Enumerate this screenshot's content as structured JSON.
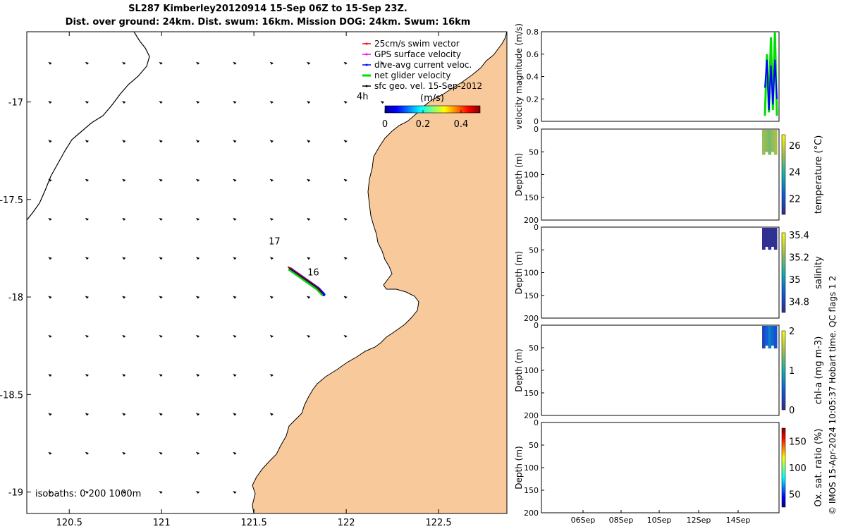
{
  "header": {
    "title_line1": "SL287 Kimberley20120914 15-Sep 06Z to 15-Sep 23Z.",
    "title_line2": "Dist. over ground: 24km. Dist. swum: 16km. Mission DOG: 24km. Swum: 16km"
  },
  "credit": "© IMOS 15-Apr-2024 10:05:37 Hobart time. QC flags 1  2",
  "chart_data": [
    {
      "type": "map",
      "name": "glider-track-map",
      "x_ticks": [
        "120.5",
        "121",
        "121.5",
        "122",
        "122.5"
      ],
      "x_tick_values": [
        120.5,
        121,
        121.5,
        122,
        122.5
      ],
      "y_ticks": [
        "-17",
        "-17.5",
        "-18",
        "-18.5",
        "-19"
      ],
      "y_tick_values": [
        -17,
        -17.5,
        -18,
        -18.5,
        -19
      ],
      "xlim": [
        120.27,
        122.87
      ],
      "ylim": [
        -19.11,
        -16.64
      ],
      "land_color": "#f8c99a",
      "legend": [
        {
          "label": "25cm/s swim vector",
          "color": "#ff0000"
        },
        {
          "label": "GPS surface velocity",
          "color": "#ff00ff"
        },
        {
          "label": "dive-avg current veloc.",
          "color": "#0000ff"
        },
        {
          "label": "net glider velocity",
          "color": "#00dd00"
        },
        {
          "label": "sfc geo. vel. 15-Sep-2012",
          "color": "#000000"
        }
      ],
      "legend_extra": "4h",
      "colorbar": {
        "label": "(m/s)",
        "ticks": [
          "0",
          "0.2",
          "0.4"
        ],
        "tick_values": [
          0,
          0.2,
          0.4
        ],
        "range": [
          0,
          0.5
        ]
      },
      "track_labels": [
        {
          "text": "17",
          "lon": 121.58,
          "lat": -17.73
        },
        {
          "text": "16",
          "lon": 121.79,
          "lat": -17.89
        }
      ],
      "isobath_label": "isobaths: 0   200  1000m",
      "track": {
        "lons": [
          121.69,
          121.72,
          121.75,
          121.78,
          121.81,
          121.84,
          121.87
        ],
        "lats": [
          -17.85,
          -17.87,
          -17.89,
          -17.91,
          -17.93,
          -17.95,
          -17.98
        ]
      }
    },
    {
      "type": "line",
      "name": "velocity-panel",
      "ylabel": "velocity magnitude (m/s)",
      "ylim": [
        0,
        0.8
      ],
      "y_ticks": [
        "0",
        "0.2",
        "0.4",
        "0.6",
        "0.8"
      ],
      "y_tick_values": [
        0,
        0.2,
        0.4,
        0.6,
        0.8
      ],
      "series": [
        {
          "color": "#00dd00",
          "values": [
            0.05,
            0.6,
            0.08,
            0.75,
            0.1,
            0.8,
            0.05
          ]
        },
        {
          "color": "#0000ff",
          "values": [
            0.3,
            0.55,
            0.1,
            0.5,
            0.15,
            0.55,
            0.2
          ]
        }
      ]
    },
    {
      "type": "scatter",
      "name": "temperature-panel",
      "ylabel": "Depth (m)",
      "ylim": [
        0,
        200
      ],
      "y_ticks": [
        "0",
        "50",
        "100",
        "150",
        "200"
      ],
      "y_tick_values": [
        0,
        50,
        100,
        150,
        200
      ],
      "profile_depth_range": [
        0,
        55
      ],
      "colorbar": {
        "label": "temperature (°C)",
        "ticks": [
          "22",
          "24",
          "26"
        ],
        "tick_values": [
          22,
          24,
          26
        ],
        "range": [
          20.8,
          26.8
        ]
      },
      "profile_values": [
        25.2,
        25.0,
        24.8,
        25.1,
        25.3
      ]
    },
    {
      "type": "scatter",
      "name": "salinity-panel",
      "ylabel": "Depth (m)",
      "ylim": [
        0,
        200
      ],
      "y_ticks": [
        "0",
        "50",
        "100",
        "150",
        "200"
      ],
      "y_tick_values": [
        0,
        50,
        100,
        150,
        200
      ],
      "profile_depth_range": [
        0,
        48
      ],
      "colorbar": {
        "label": "salinity",
        "ticks": [
          "34.8",
          "35",
          "35.2",
          "35.4"
        ],
        "tick_values": [
          34.8,
          35,
          35.2,
          35.4
        ],
        "range": [
          34.7,
          35.42
        ]
      },
      "profile_values": [
        34.72,
        34.72,
        34.73,
        34.72,
        34.72
      ]
    },
    {
      "type": "scatter",
      "name": "chla-panel",
      "ylabel": "Depth (m)",
      "ylim": [
        0,
        200
      ],
      "y_ticks": [
        "0",
        "50",
        "100",
        "150",
        "200"
      ],
      "y_tick_values": [
        0,
        50,
        100,
        150,
        200
      ],
      "profile_depth_range": [
        0,
        50
      ],
      "colorbar": {
        "label": "chl-a (mg m-3)",
        "ticks": [
          "0",
          "1",
          "2"
        ],
        "tick_values": [
          0,
          1,
          2
        ],
        "range": [
          0,
          2
        ]
      },
      "profile_values": [
        0.3,
        0.5,
        0.7,
        0.55,
        0.4
      ]
    },
    {
      "type": "scatter",
      "name": "oxygen-panel",
      "ylabel": "Depth (m)",
      "ylim": [
        0,
        200
      ],
      "y_ticks": [
        "0",
        "50",
        "100",
        "150",
        "200"
      ],
      "y_tick_values": [
        0,
        50,
        100,
        150,
        200
      ],
      "x_ticks": [
        "06Sep",
        "08Sep",
        "10Sep",
        "12Sep",
        "14Sep"
      ],
      "colorbar": {
        "label": "Ox. sat. ratio (%)",
        "ticks": [
          "50",
          "100",
          "150"
        ],
        "tick_values": [
          50,
          100,
          150
        ],
        "range": [
          25,
          175
        ]
      }
    }
  ]
}
